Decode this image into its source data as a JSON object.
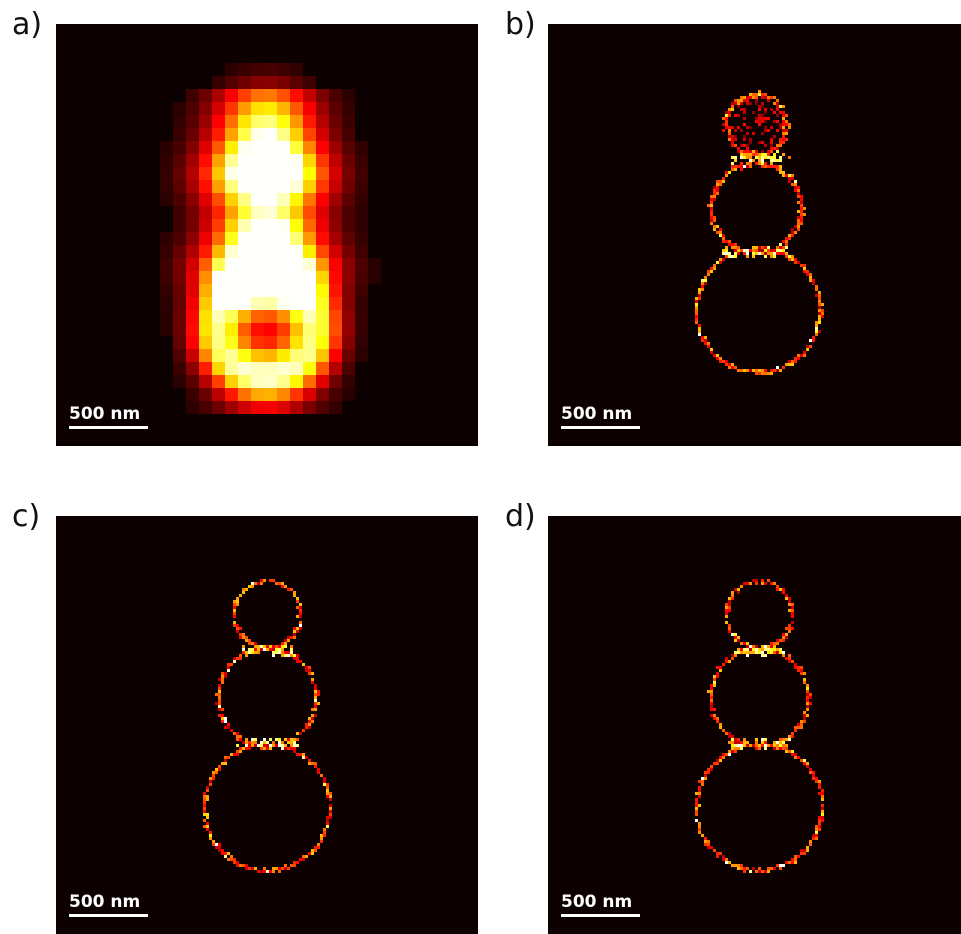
{
  "panels": [
    {
      "label": "a)",
      "scale_bar": "500 nm"
    },
    {
      "label": "b)",
      "scale_bar": "500 nm"
    },
    {
      "label": "c)",
      "scale_bar": "500 nm"
    },
    {
      "label": "d)",
      "scale_bar": "500 nm"
    }
  ],
  "colors": {
    "background": "#0d0000",
    "colormap": "hot"
  }
}
